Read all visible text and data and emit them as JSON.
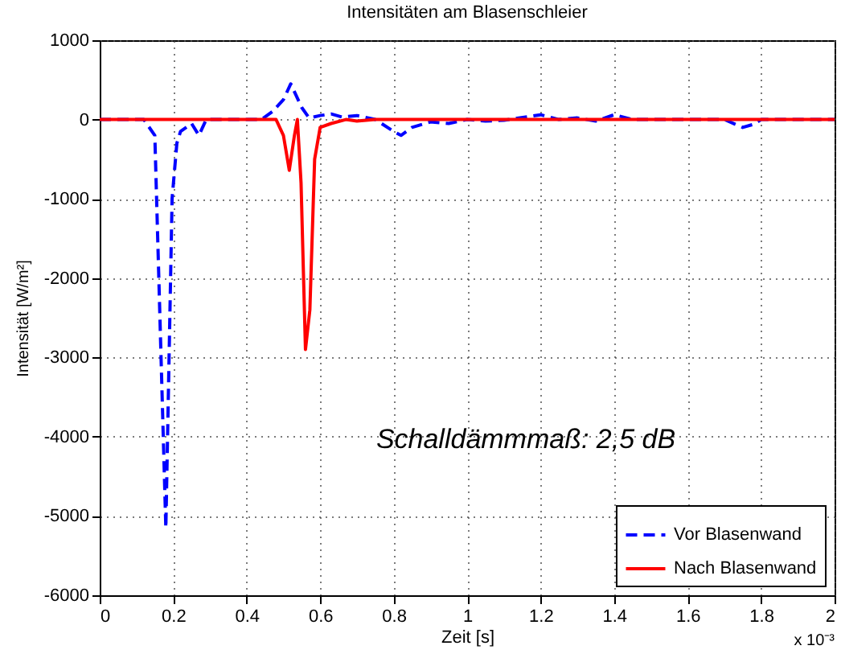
{
  "chart_data": {
    "type": "line",
    "title": "Intensitäten am Blasenschleier",
    "xlabel": "Zeit [s]",
    "ylabel": "Intensität [W/m²]",
    "xlim": [
      0,
      2
    ],
    "xticks": [
      0,
      0.2,
      0.4,
      0.6,
      0.8,
      1,
      1.2,
      1.4,
      1.6,
      1.8,
      2
    ],
    "ylim": [
      -6000,
      1000
    ],
    "yticks": [
      -6000,
      -5000,
      -4000,
      -3000,
      -2000,
      -1000,
      0,
      1000
    ],
    "grid": true,
    "legend": "bottom right",
    "marker": "none",
    "annotations": [
      "Schalldämmmaß: 2,5 dB",
      "x 10⁻³"
    ],
    "series": [
      {
        "name": "Vor Blasenwand",
        "color": "#0000ff",
        "line_style": "dashed",
        "x": [
          0,
          0.12,
          0.15,
          0.18,
          0.197,
          0.21,
          0.22,
          0.25,
          0.27,
          0.29,
          0.44,
          0.47,
          0.5,
          0.52,
          0.55,
          0.57,
          0.6,
          0.63,
          0.66,
          0.7,
          0.75,
          0.8,
          0.82,
          0.85,
          0.9,
          0.95,
          1.0,
          1.05,
          1.1,
          1.2,
          1.25,
          1.3,
          1.35,
          1.4,
          1.45,
          1.7,
          1.75,
          1.78,
          1.8,
          2
        ],
        "values": [
          0,
          0,
          -200,
          -5150,
          -1000,
          -300,
          -150,
          -50,
          -200,
          0,
          0,
          100,
          250,
          450,
          150,
          20,
          50,
          70,
          30,
          50,
          0,
          -150,
          -200,
          -100,
          -30,
          -50,
          0,
          -20,
          -10,
          60,
          0,
          20,
          -20,
          60,
          0,
          0,
          -100,
          -60,
          0,
          0
        ]
      },
      {
        "name": "Nach Blasenwand",
        "color": "#ff0000",
        "line_style": "solid",
        "x": [
          0,
          0.48,
          0.5,
          0.516,
          0.53,
          0.538,
          0.548,
          0.56,
          0.572,
          0.585,
          0.6,
          0.63,
          0.67,
          0.7,
          0.75,
          2
        ],
        "values": [
          0,
          0,
          -200,
          -640,
          -200,
          0,
          -800,
          -2900,
          -2400,
          -500,
          -100,
          -50,
          0,
          -20,
          0,
          0
        ]
      }
    ]
  }
}
